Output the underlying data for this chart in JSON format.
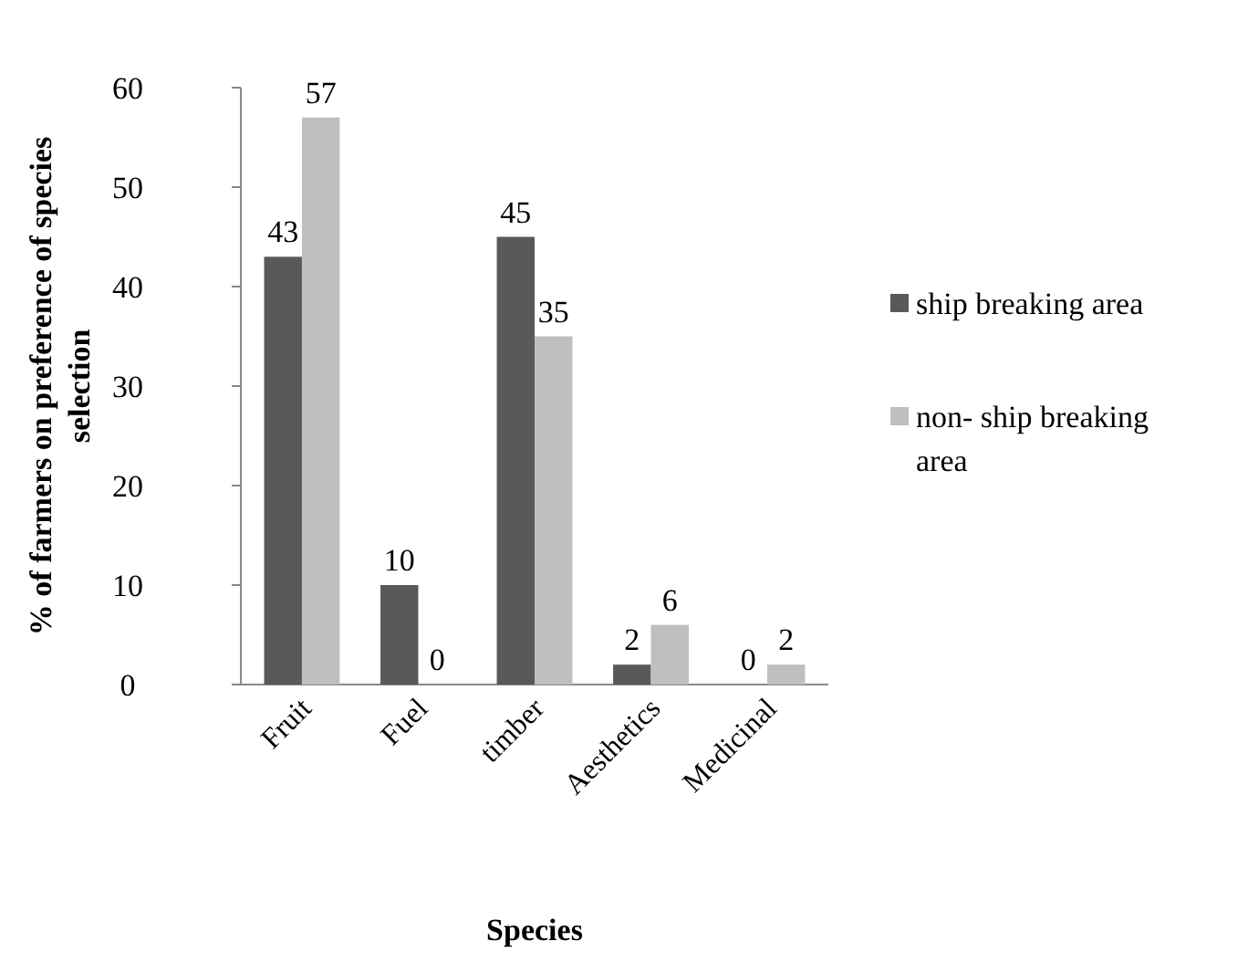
{
  "chart_data": {
    "type": "bar",
    "xlabel": "Species",
    "ylabel": "% of farmers on preference of species selection",
    "categories": [
      "Fruit",
      "Fuel",
      "timber",
      "Aesthetics",
      "Medicinal"
    ],
    "series": [
      {
        "name": "ship breaking area",
        "color": "#595959",
        "values": [
          43,
          10,
          45,
          2,
          0
        ]
      },
      {
        "name": "non- ship breaking area",
        "color": "#bfbfbf",
        "values": [
          57,
          0,
          35,
          6,
          2
        ]
      }
    ],
    "ylim": [
      0,
      60
    ],
    "yticks": [
      0,
      10,
      20,
      30,
      40,
      50,
      60
    ],
    "grid": false,
    "legend": "right",
    "data_labels": true
  }
}
